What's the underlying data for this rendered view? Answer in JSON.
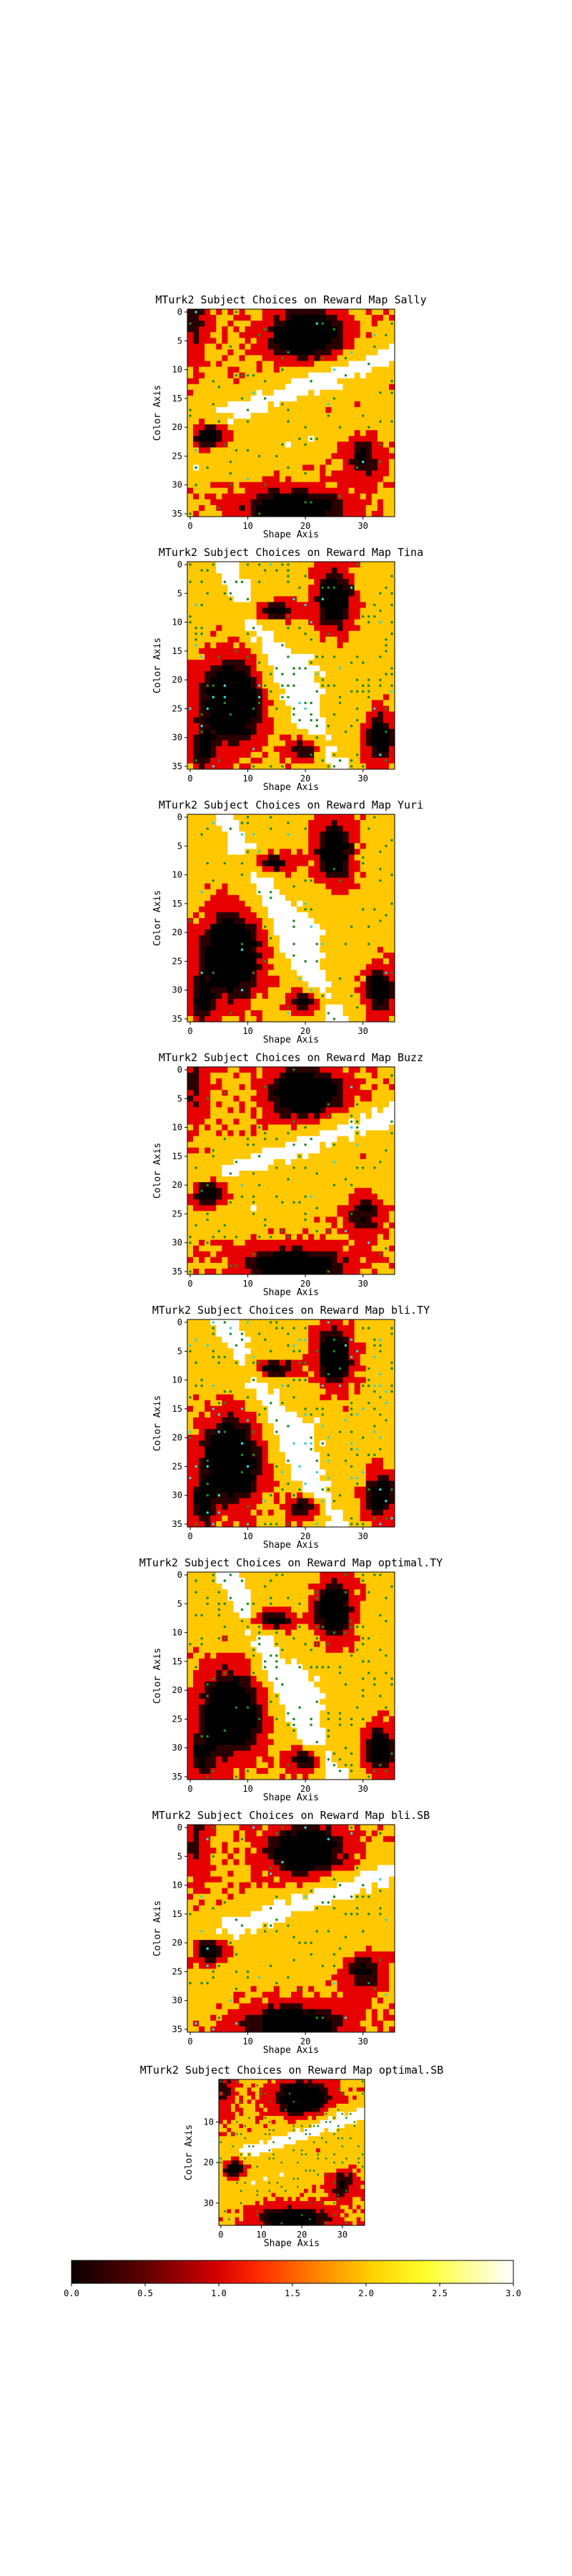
{
  "chart_data": [
    {
      "type": "heatmap",
      "title": "MTurk2 Subject Choices on Reward Map Sally",
      "xlabel": "Shape Axis",
      "ylabel": "Color Axis",
      "xticks": [
        0,
        10,
        20,
        30
      ],
      "yticks": [
        0,
        5,
        10,
        15,
        20,
        25,
        30,
        35
      ],
      "xlim": [
        0,
        35
      ],
      "ylim": [
        0,
        35
      ]
    },
    {
      "type": "heatmap",
      "title": "MTurk2 Subject Choices on Reward Map Tina",
      "xlabel": "Shape Axis",
      "ylabel": "Color Axis",
      "xticks": [
        0,
        10,
        20,
        30
      ],
      "yticks": [
        0,
        5,
        10,
        15,
        20,
        25,
        30,
        35
      ],
      "xlim": [
        0,
        35
      ],
      "ylim": [
        0,
        35
      ]
    },
    {
      "type": "heatmap",
      "title": "MTurk2 Subject Choices on Reward Map Yuri",
      "xlabel": "Shape Axis",
      "ylabel": "Color Axis",
      "xticks": [
        0,
        10,
        20,
        30
      ],
      "yticks": [
        0,
        5,
        10,
        15,
        20,
        25,
        30,
        35
      ],
      "xlim": [
        0,
        35
      ],
      "ylim": [
        0,
        35
      ]
    },
    {
      "type": "heatmap",
      "title": "MTurk2 Subject Choices on Reward Map Buzz",
      "xlabel": "Shape Axis",
      "ylabel": "Color Axis",
      "xticks": [
        0,
        10,
        20,
        30
      ],
      "yticks": [
        0,
        5,
        10,
        15,
        20,
        25,
        30,
        35
      ],
      "xlim": [
        0,
        35
      ],
      "ylim": [
        0,
        35
      ]
    },
    {
      "type": "heatmap",
      "title": "MTurk2 Subject Choices on Reward Map bli.TY",
      "xlabel": "Shape Axis",
      "ylabel": "Color Axis",
      "xticks": [
        0,
        10,
        20,
        30
      ],
      "yticks": [
        0,
        5,
        10,
        15,
        20,
        25,
        30,
        35
      ],
      "xlim": [
        0,
        35
      ],
      "ylim": [
        0,
        35
      ]
    },
    {
      "type": "heatmap",
      "title": "MTurk2 Subject Choices on Reward Map optimal.TY",
      "xlabel": "Shape Axis",
      "ylabel": "Color Axis",
      "xticks": [
        0,
        10,
        20,
        30
      ],
      "yticks": [
        0,
        5,
        10,
        15,
        20,
        25,
        30,
        35
      ],
      "xlim": [
        0,
        35
      ],
      "ylim": [
        0,
        35
      ]
    },
    {
      "type": "heatmap",
      "title": "MTurk2 Subject Choices on Reward Map bli.SB",
      "xlabel": "Shape Axis",
      "ylabel": "Color Axis",
      "xticks": [
        0,
        10,
        20,
        30
      ],
      "yticks": [
        0,
        5,
        10,
        15,
        20,
        25,
        30,
        35
      ],
      "xlim": [
        0,
        35
      ],
      "ylim": [
        0,
        35
      ]
    },
    {
      "type": "heatmap",
      "title": "MTurk2 Subject Choices on Reward Map optimal.SB",
      "xlabel": "Shape Axis",
      "ylabel": "Color Axis",
      "xticks": [
        0,
        10,
        20,
        30
      ],
      "yticks": [
        10,
        20,
        30
      ],
      "xlim": [
        0,
        35
      ],
      "ylim": [
        0,
        35
      ]
    }
  ],
  "colorbar": {
    "colormap": "hot",
    "range": [
      0.0,
      3.0
    ],
    "ticks": [
      "0.0",
      "0.5",
      "1.0",
      "1.5",
      "2.0",
      "2.5",
      "3.0"
    ]
  },
  "colors": {
    "black": "#000000",
    "dark": "#2a0000",
    "red": "#e60000",
    "orange": "#ff9a00",
    "yellow": "#ffc800",
    "white": "#ffffff",
    "marker_green": "#1f8a1f",
    "marker_cyan": "#33d6d6"
  }
}
